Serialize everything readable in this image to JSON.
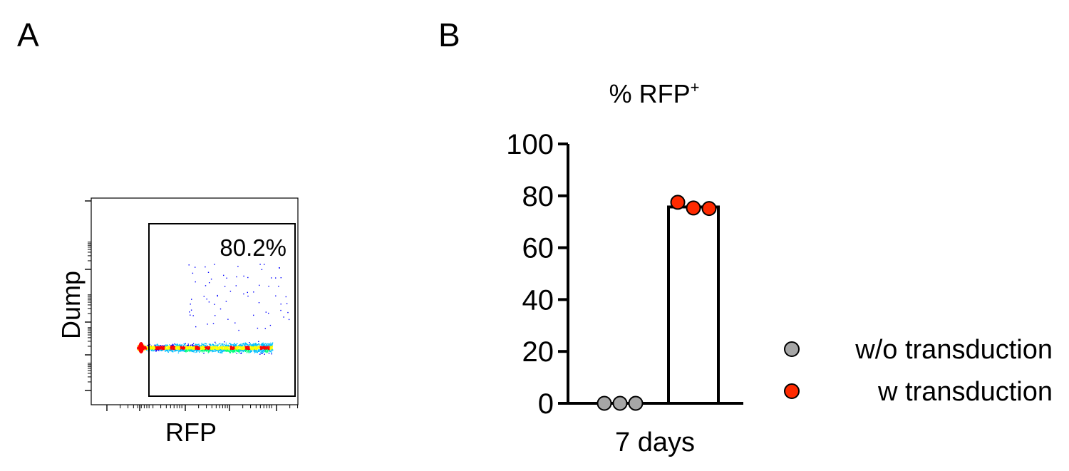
{
  "panels": {
    "a_label": "A",
    "b_label": "B"
  },
  "chart_data": [
    {
      "type": "scatter",
      "panel": "A",
      "xlabel": "RFP",
      "ylabel": "Dump",
      "x_scale": "log",
      "y_scale": "log",
      "colormap": [
        "#0000ff",
        "#00bfff",
        "#00ff7f",
        "#ffff00",
        "#ff0000"
      ],
      "gate": {
        "label": "80.2%",
        "value_percent": 80.2
      }
    },
    {
      "type": "bar",
      "panel": "B",
      "title": "% RFP+",
      "title_main": "% RFP",
      "title_sup": "+",
      "categories": [
        "w/o transduction",
        "w transduction"
      ],
      "xlabel": "7 days",
      "ylim": [
        0,
        100
      ],
      "yticks": [
        0,
        20,
        40,
        60,
        80,
        100
      ],
      "series": [
        {
          "name": "w/o transduction",
          "color": "#a6a6a6",
          "bar_value": 0,
          "points": [
            0,
            0,
            0
          ]
        },
        {
          "name": "w transduction",
          "color": "#ff2a00",
          "bar_value": 75.7,
          "points": [
            77.5,
            75.3,
            75.1
          ]
        }
      ],
      "legend_position": "right"
    }
  ]
}
